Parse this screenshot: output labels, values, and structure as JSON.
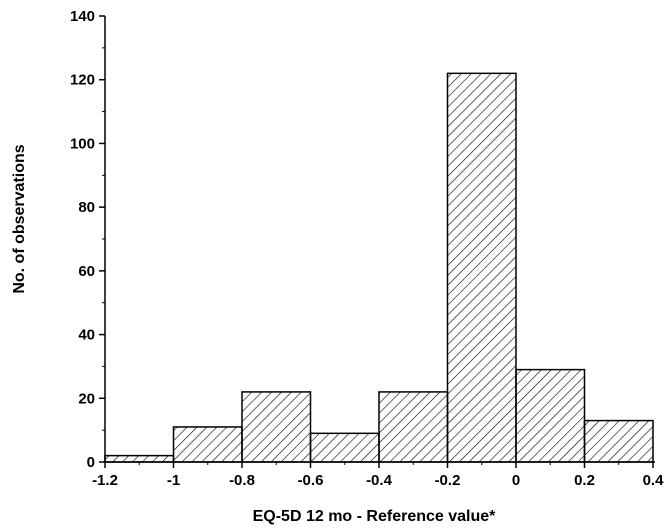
{
  "chart_data": {
    "type": "bar",
    "title": "",
    "xlabel": "EQ-5D 12 mo - Reference value*",
    "ylabel": "No. of observations",
    "xlim": [
      -1.2,
      0.4
    ],
    "ylim": [
      0,
      140
    ],
    "x_ticks": [
      "-1.2",
      "-1",
      "-0.8",
      "-0.6",
      "-0.4",
      "-0.2",
      "0",
      "0.2",
      "0.4"
    ],
    "y_ticks": [
      "0",
      "20",
      "40",
      "60",
      "80",
      "100",
      "120",
      "140"
    ],
    "bins": [
      {
        "from": -1.2,
        "to": -1.0,
        "value": 2
      },
      {
        "from": -1.0,
        "to": -0.8,
        "value": 11
      },
      {
        "from": -0.8,
        "to": -0.6,
        "value": 22
      },
      {
        "from": -0.6,
        "to": -0.4,
        "value": 9
      },
      {
        "from": -0.4,
        "to": -0.2,
        "value": 22
      },
      {
        "from": -0.2,
        "to": 0.0,
        "value": 122
      },
      {
        "from": 0.0,
        "to": 0.2,
        "value": 29
      },
      {
        "from": 0.2,
        "to": 0.4,
        "value": 13
      }
    ],
    "bar_fill": "diagonal-hatch",
    "bar_color": "#000000",
    "grid": false,
    "legend": "none"
  }
}
